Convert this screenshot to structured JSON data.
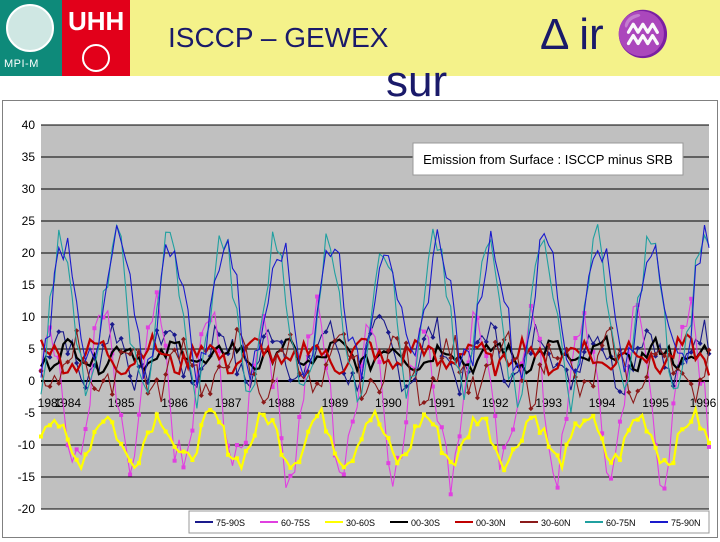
{
  "header": {
    "logo_left_text": "MPI-M",
    "logo_right_text": "UHH",
    "title": "ISCCP – GEWEX",
    "title_right": "Δ ir ♒",
    "subtitle": "sur"
  },
  "chart_data": {
    "type": "line",
    "title": "Emission from Surface : ISCCP minus SRB",
    "xlabel": "",
    "ylabel": "",
    "ylim": [
      -20,
      40
    ],
    "yticks": [
      "40",
      "35",
      "30",
      "25",
      "20",
      "15",
      "10",
      "5",
      "0",
      "-5",
      "-10",
      "-15",
      "-20"
    ],
    "xticks": [
      "1983",
      "1984",
      "1985",
      "1986",
      "1987",
      "1988",
      "1989",
      "1990",
      "1991",
      "1992",
      "1993",
      "1994",
      "1995",
      "1996"
    ],
    "x_range": [
      1983.5,
      1996
    ],
    "series": [
      {
        "name": "75-90S",
        "color": "#1a1a8c",
        "mean": 4,
        "amp": 4,
        "phase": 0.4,
        "noise": 2.5,
        "marker": "diamond"
      },
      {
        "name": "60-75S",
        "color": "#e040e0",
        "mean": -2,
        "amp": 12,
        "phase": 0.6,
        "noise": 4,
        "marker": "square"
      },
      {
        "name": "30-60S",
        "color": "#ffff00",
        "mean": -9,
        "amp": 3.5,
        "phase": 0.55,
        "noise": 1.5,
        "marker": "square"
      },
      {
        "name": "00-30S",
        "color": "#000000",
        "mean": 4,
        "amp": 1.5,
        "phase": 0.2,
        "noise": 1.5,
        "marker": "none"
      },
      {
        "name": "00-30N",
        "color": "#c00000",
        "mean": 4,
        "amp": 1.8,
        "phase": 0.7,
        "noise": 1.6,
        "marker": "none"
      },
      {
        "name": "30-60N",
        "color": "#8b1a1a",
        "mean": 2,
        "amp": 4,
        "phase": 0.1,
        "noise": 2.5,
        "marker": "diamond"
      },
      {
        "name": "60-75N",
        "color": "#20a0a0",
        "mean": 10,
        "amp": 12,
        "phase": 0.35,
        "noise": 3,
        "marker": "none"
      },
      {
        "name": "75-90N",
        "color": "#1a1acc",
        "mean": 12,
        "amp": 10,
        "phase": 0.3,
        "noise": 3,
        "marker": "none"
      }
    ],
    "legend": [
      "75-90S",
      "60-75S",
      "30-60S",
      "00-30S",
      "00-30N",
      "30-60N",
      "60-75N",
      "75-90N"
    ],
    "grid": true,
    "legend_position": "bottom"
  }
}
